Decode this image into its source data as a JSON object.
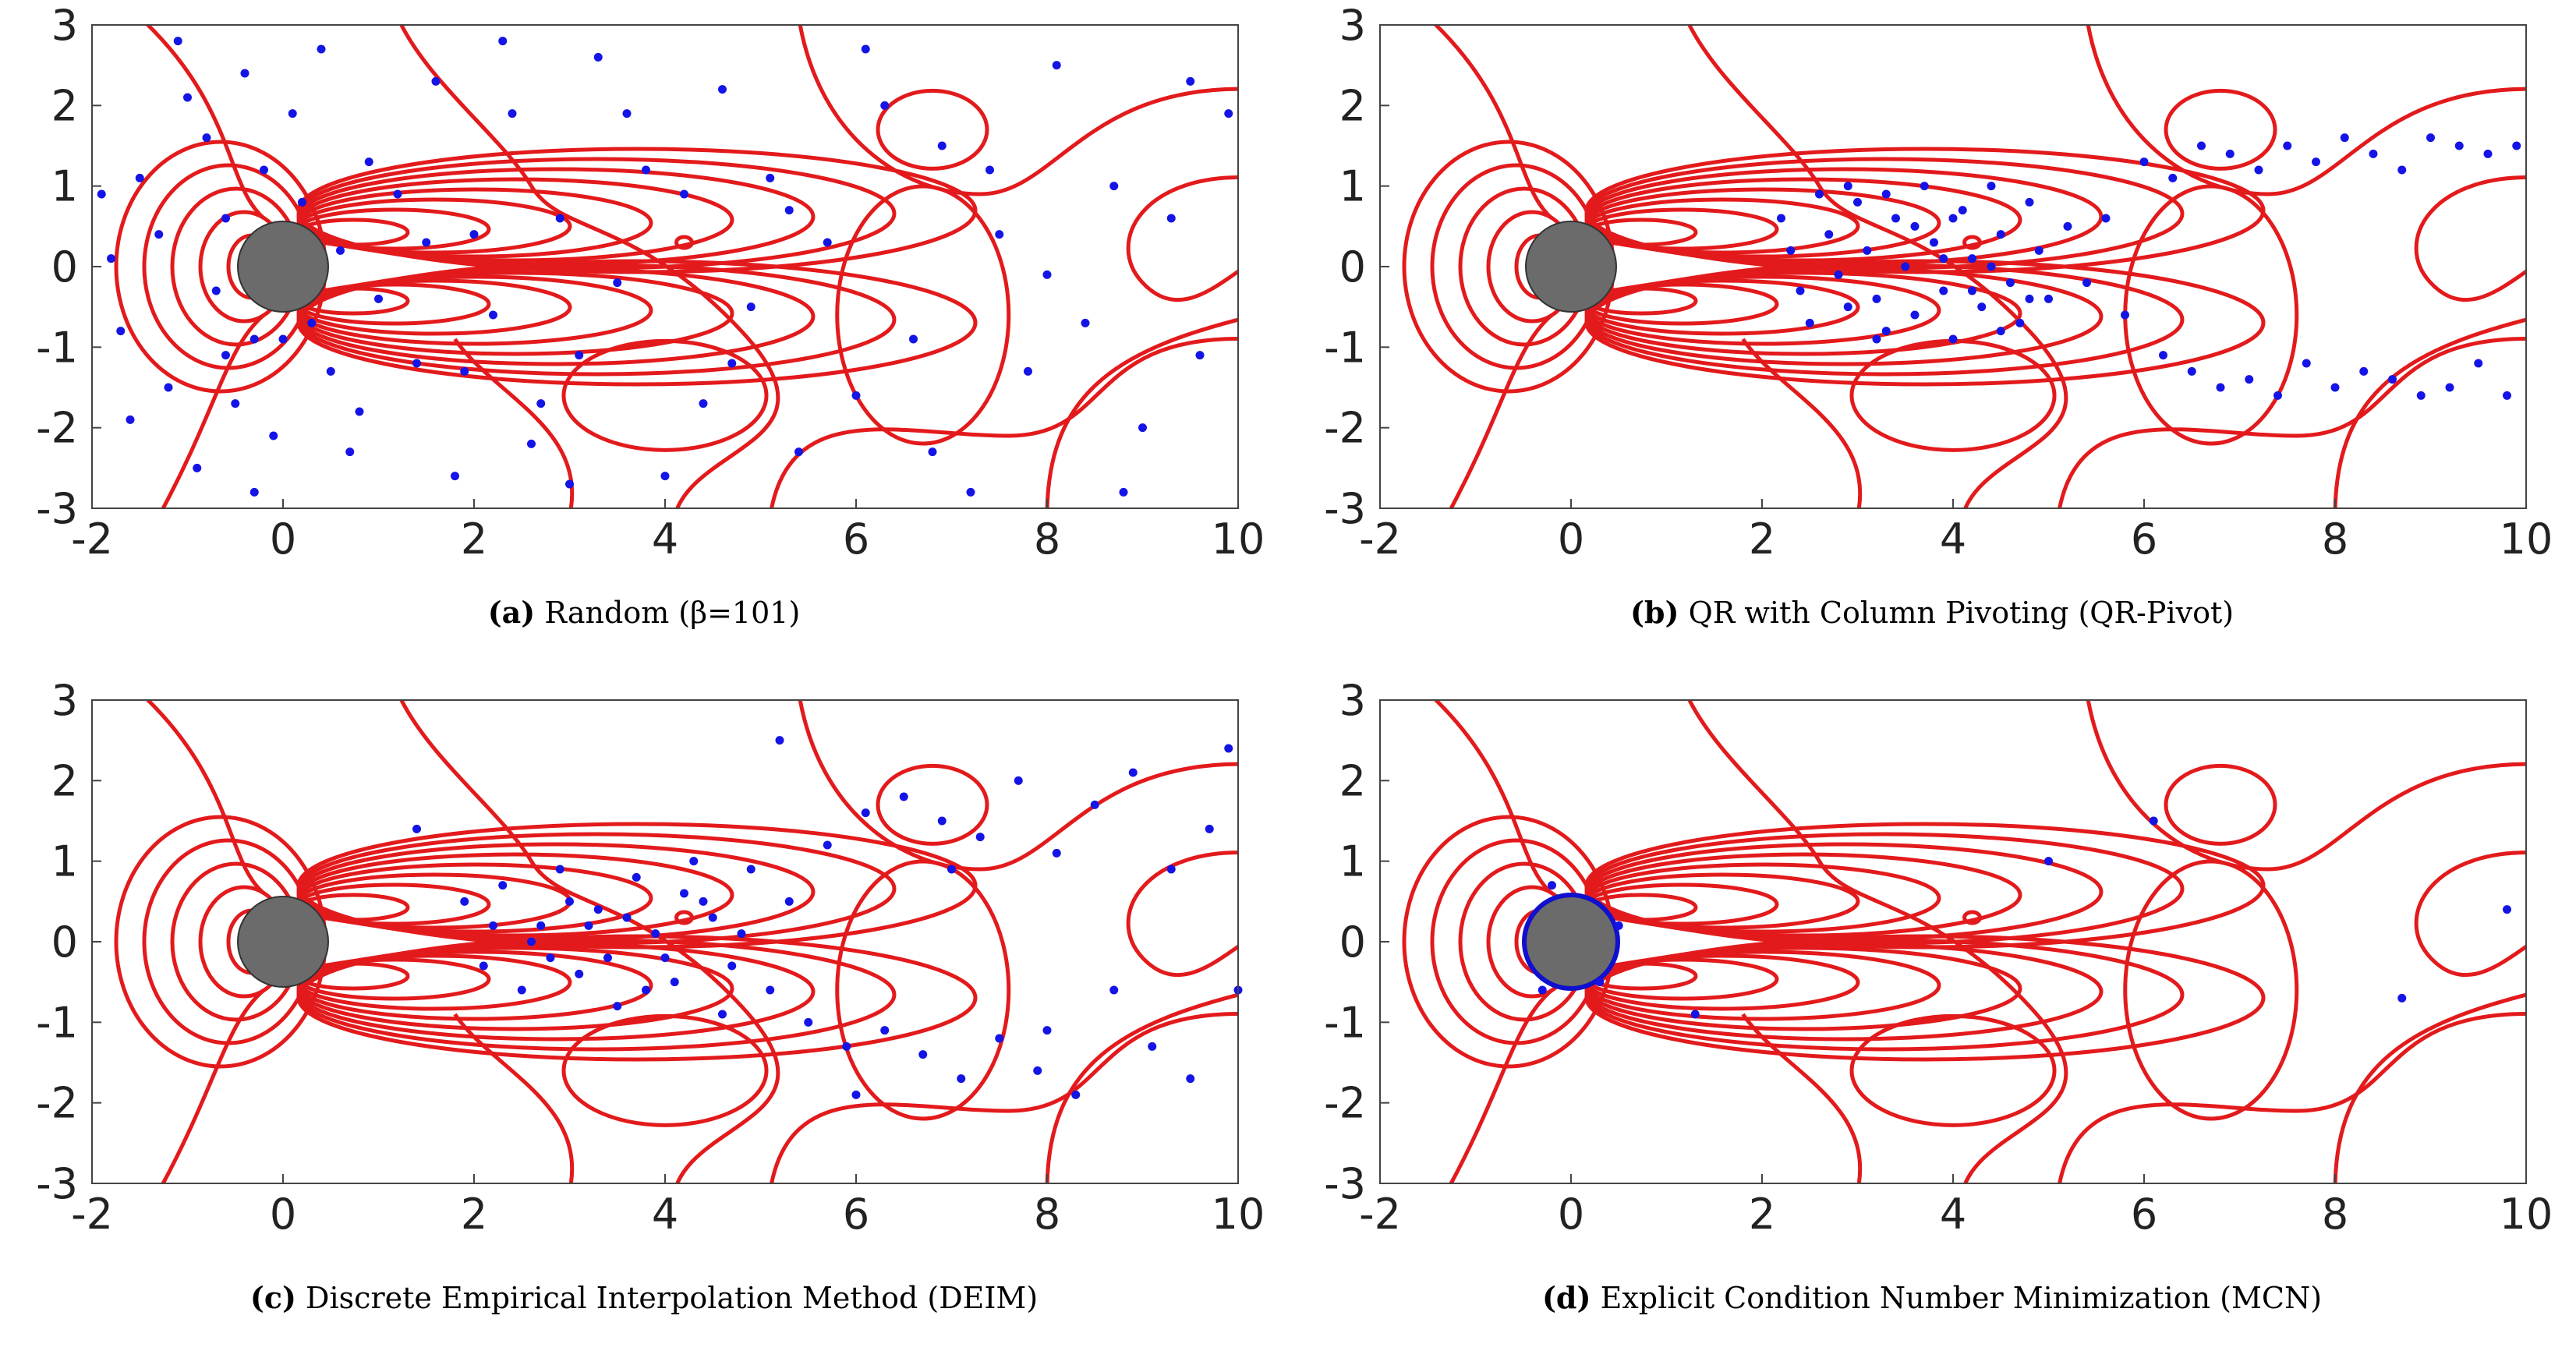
{
  "figure": {
    "description_panels": 4
  },
  "chart_data": [
    {
      "type": "scatter",
      "panel_id": "a",
      "caption_tag": "(a)",
      "caption_text": "Random (β=101)",
      "xlim": [
        -2,
        10
      ],
      "ylim": [
        -3,
        3
      ],
      "xticks": [
        "-2",
        "0",
        "2",
        "4",
        "6",
        "8",
        "10"
      ],
      "yticks": [
        "3",
        "2",
        "1",
        "0",
        "-1",
        "-2",
        "-3"
      ],
      "point_style": "scattered",
      "points": [
        [
          -1.9,
          0.9
        ],
        [
          -1.8,
          0.1
        ],
        [
          -1.7,
          -0.8
        ],
        [
          -1.5,
          1.1
        ],
        [
          -1.3,
          0.4
        ],
        [
          -1.2,
          -1.5
        ],
        [
          -1.0,
          2.1
        ],
        [
          -0.9,
          -2.5
        ],
        [
          -0.8,
          1.6
        ],
        [
          -0.7,
          -0.3
        ],
        [
          -0.6,
          0.6
        ],
        [
          -0.5,
          -1.7
        ],
        [
          -0.4,
          2.4
        ],
        [
          -0.3,
          -0.9
        ],
        [
          -0.2,
          1.2
        ],
        [
          -0.1,
          -2.1
        ],
        [
          0.2,
          0.8
        ],
        [
          0.3,
          -0.7
        ],
        [
          0.4,
          2.7
        ],
        [
          0.5,
          -1.3
        ],
        [
          0.6,
          0.2
        ],
        [
          0.7,
          -2.3
        ],
        [
          0.9,
          1.3
        ],
        [
          1.0,
          -0.4
        ],
        [
          1.2,
          0.9
        ],
        [
          1.4,
          -1.2
        ],
        [
          1.6,
          2.3
        ],
        [
          1.8,
          -2.6
        ],
        [
          2.0,
          0.4
        ],
        [
          2.2,
          -0.6
        ],
        [
          2.4,
          1.9
        ],
        [
          2.6,
          -2.2
        ],
        [
          2.9,
          0.6
        ],
        [
          3.1,
          -1.1
        ],
        [
          3.3,
          2.6
        ],
        [
          3.5,
          -0.2
        ],
        [
          3.8,
          1.2
        ],
        [
          4.0,
          -2.6
        ],
        [
          4.2,
          0.9
        ],
        [
          4.4,
          -1.7
        ],
        [
          4.6,
          2.2
        ],
        [
          4.9,
          -0.5
        ],
        [
          5.1,
          1.1
        ],
        [
          5.4,
          -2.3
        ],
        [
          5.7,
          0.3
        ],
        [
          6.0,
          -1.6
        ],
        [
          6.3,
          2.0
        ],
        [
          6.6,
          -0.9
        ],
        [
          6.9,
          1.5
        ],
        [
          7.2,
          -2.8
        ],
        [
          7.5,
          0.4
        ],
        [
          7.8,
          -1.3
        ],
        [
          8.1,
          2.5
        ],
        [
          8.4,
          -0.7
        ],
        [
          8.7,
          1.0
        ],
        [
          9.0,
          -2.0
        ],
        [
          9.3,
          0.6
        ],
        [
          9.6,
          -1.1
        ],
        [
          9.9,
          1.9
        ],
        [
          -1.6,
          -1.9
        ],
        [
          -1.1,
          2.8
        ],
        [
          -0.3,
          -2.8
        ],
        [
          0.1,
          1.9
        ],
        [
          0.8,
          -1.8
        ],
        [
          1.5,
          0.3
        ],
        [
          2.3,
          2.8
        ],
        [
          2.7,
          -1.7
        ],
        [
          3.0,
          -2.7
        ],
        [
          3.6,
          1.9
        ],
        [
          4.7,
          -1.2
        ],
        [
          5.3,
          0.7
        ],
        [
          6.1,
          2.7
        ],
        [
          6.8,
          -2.3
        ],
        [
          7.4,
          1.2
        ],
        [
          8.0,
          -0.1
        ],
        [
          8.8,
          -2.8
        ],
        [
          9.5,
          2.3
        ],
        [
          0.0,
          -0.9
        ],
        [
          -0.6,
          -1.1
        ],
        [
          1.9,
          -1.3
        ]
      ]
    },
    {
      "type": "scatter",
      "panel_id": "b",
      "caption_tag": "(b)",
      "caption_text": "QR with Column Pivoting (QR-Pivot)",
      "xlim": [
        -2,
        10
      ],
      "ylim": [
        -3,
        3
      ],
      "xticks": [
        "-2",
        "0",
        "2",
        "4",
        "6",
        "8",
        "10"
      ],
      "yticks": [
        "3",
        "2",
        "1",
        "0",
        "-1",
        "-2",
        "-3"
      ],
      "point_style": "wake",
      "points": [
        [
          2.2,
          0.6
        ],
        [
          2.3,
          0.2
        ],
        [
          2.4,
          -0.3
        ],
        [
          2.5,
          -0.7
        ],
        [
          2.6,
          0.9
        ],
        [
          2.7,
          0.4
        ],
        [
          2.8,
          -0.1
        ],
        [
          2.9,
          -0.5
        ],
        [
          3.0,
          0.8
        ],
        [
          3.1,
          0.2
        ],
        [
          3.2,
          -0.4
        ],
        [
          3.3,
          -0.8
        ],
        [
          3.4,
          0.6
        ],
        [
          3.5,
          0.0
        ],
        [
          3.6,
          -0.6
        ],
        [
          3.7,
          1.0
        ],
        [
          3.8,
          0.3
        ],
        [
          3.9,
          -0.3
        ],
        [
          4.0,
          -0.9
        ],
        [
          4.1,
          0.7
        ],
        [
          4.2,
          0.1
        ],
        [
          4.3,
          -0.5
        ],
        [
          4.4,
          1.0
        ],
        [
          4.5,
          0.4
        ],
        [
          4.6,
          -0.2
        ],
        [
          4.7,
          -0.7
        ],
        [
          4.8,
          0.8
        ],
        [
          4.9,
          0.2
        ],
        [
          5.0,
          -0.4
        ],
        [
          5.2,
          0.5
        ],
        [
          5.4,
          -0.2
        ],
        [
          5.6,
          0.6
        ],
        [
          5.8,
          -0.6
        ],
        [
          6.0,
          1.3
        ],
        [
          6.3,
          1.1
        ],
        [
          6.6,
          1.5
        ],
        [
          6.9,
          1.4
        ],
        [
          7.2,
          1.2
        ],
        [
          7.5,
          1.5
        ],
        [
          7.8,
          1.3
        ],
        [
          8.1,
          1.6
        ],
        [
          8.4,
          1.4
        ],
        [
          8.7,
          1.2
        ],
        [
          9.0,
          1.6
        ],
        [
          9.3,
          1.5
        ],
        [
          9.6,
          1.4
        ],
        [
          9.9,
          1.5
        ],
        [
          6.2,
          -1.1
        ],
        [
          6.5,
          -1.3
        ],
        [
          6.8,
          -1.5
        ],
        [
          7.1,
          -1.4
        ],
        [
          7.4,
          -1.6
        ],
        [
          7.7,
          -1.2
        ],
        [
          8.0,
          -1.5
        ],
        [
          8.3,
          -1.3
        ],
        [
          8.6,
          -1.4
        ],
        [
          8.9,
          -1.6
        ],
        [
          9.2,
          -1.5
        ],
        [
          9.5,
          -1.2
        ],
        [
          9.8,
          -1.6
        ],
        [
          3.3,
          0.9
        ],
        [
          3.6,
          0.5
        ],
        [
          3.9,
          0.1
        ],
        [
          4.2,
          -0.3
        ],
        [
          4.5,
          -0.8
        ],
        [
          2.9,
          1.0
        ],
        [
          3.2,
          -0.9
        ],
        [
          4.0,
          0.6
        ],
        [
          4.4,
          0.0
        ],
        [
          4.8,
          -0.4
        ]
      ]
    },
    {
      "type": "scatter",
      "panel_id": "c",
      "caption_tag": "(c)",
      "caption_text": "Discrete Empirical Interpolation Method (DEIM)",
      "xlim": [
        -2,
        10
      ],
      "ylim": [
        -3,
        3
      ],
      "xticks": [
        "-2",
        "0",
        "2",
        "4",
        "6",
        "8",
        "10"
      ],
      "yticks": [
        "3",
        "2",
        "1",
        "0",
        "-1",
        "-2",
        "-3"
      ],
      "point_style": "wake_wide",
      "points": [
        [
          1.4,
          1.4
        ],
        [
          1.9,
          0.5
        ],
        [
          2.1,
          -0.3
        ],
        [
          2.3,
          0.7
        ],
        [
          2.5,
          -0.6
        ],
        [
          2.7,
          0.2
        ],
        [
          2.9,
          0.9
        ],
        [
          3.1,
          -0.4
        ],
        [
          3.3,
          0.4
        ],
        [
          3.5,
          -0.8
        ],
        [
          3.7,
          0.8
        ],
        [
          3.9,
          0.1
        ],
        [
          4.1,
          -0.5
        ],
        [
          4.3,
          1.0
        ],
        [
          4.5,
          0.3
        ],
        [
          4.7,
          -0.3
        ],
        [
          4.9,
          0.9
        ],
        [
          5.1,
          -0.6
        ],
        [
          5.3,
          0.5
        ],
        [
          5.5,
          -1.0
        ],
        [
          5.7,
          1.2
        ],
        [
          5.9,
          -1.3
        ],
        [
          6.1,
          1.6
        ],
        [
          6.3,
          -1.1
        ],
        [
          6.5,
          1.8
        ],
        [
          6.7,
          -1.4
        ],
        [
          6.9,
          1.5
        ],
        [
          7.1,
          -1.7
        ],
        [
          7.3,
          1.3
        ],
        [
          7.5,
          -1.2
        ],
        [
          7.7,
          2.0
        ],
        [
          7.9,
          -1.6
        ],
        [
          8.1,
          1.1
        ],
        [
          8.3,
          -1.9
        ],
        [
          8.5,
          1.7
        ],
        [
          8.7,
          -0.6
        ],
        [
          8.9,
          2.1
        ],
        [
          9.1,
          -1.3
        ],
        [
          9.3,
          0.9
        ],
        [
          9.5,
          -1.7
        ],
        [
          9.7,
          1.4
        ],
        [
          9.9,
          2.4
        ],
        [
          10.0,
          -0.6
        ],
        [
          5.2,
          2.5
        ],
        [
          6.0,
          -1.9
        ],
        [
          2.6,
          0.0
        ],
        [
          3.0,
          0.5
        ],
        [
          3.4,
          -0.2
        ],
        [
          3.8,
          -0.6
        ],
        [
          4.2,
          0.6
        ],
        [
          4.6,
          -0.9
        ],
        [
          2.2,
          0.2
        ],
        [
          2.8,
          -0.2
        ],
        [
          3.2,
          0.2
        ],
        [
          3.6,
          0.3
        ],
        [
          4.0,
          -0.2
        ],
        [
          4.4,
          0.5
        ],
        [
          4.8,
          0.1
        ],
        [
          7.0,
          0.9
        ],
        [
          8.0,
          -1.1
        ]
      ]
    },
    {
      "type": "scatter",
      "panel_id": "d",
      "caption_tag": "(d)",
      "caption_text": "Explicit Condition Number Minimization (MCN)",
      "xlim": [
        -2,
        10
      ],
      "ylim": [
        -3,
        3
      ],
      "xticks": [
        "-2",
        "0",
        "2",
        "4",
        "6",
        "8",
        "10"
      ],
      "yticks": [
        "3",
        "2",
        "1",
        "0",
        "-1",
        "-2",
        "-3"
      ],
      "point_style": "boundary",
      "points": [
        [
          -0.2,
          0.7
        ],
        [
          0.3,
          -0.5
        ],
        [
          -0.3,
          -0.6
        ],
        [
          0.5,
          0.2
        ],
        [
          1.3,
          -0.9
        ],
        [
          5.0,
          1.0
        ],
        [
          6.1,
          1.5
        ],
        [
          8.7,
          -0.7
        ],
        [
          9.8,
          0.4
        ]
      ]
    }
  ]
}
